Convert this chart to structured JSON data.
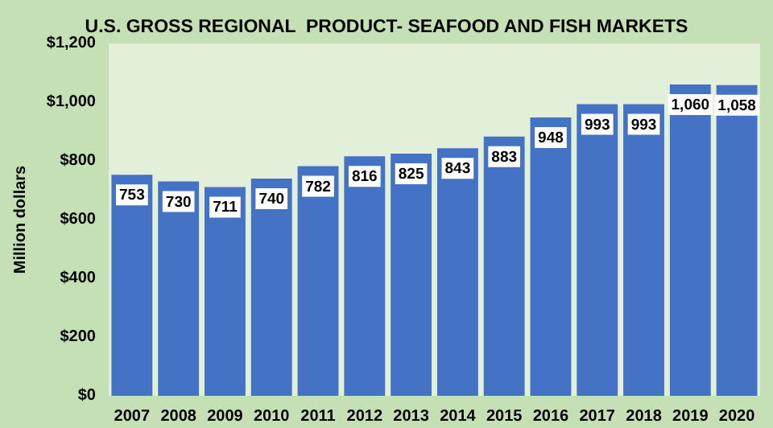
{
  "chart_data": {
    "type": "bar",
    "title": "U.S. GROSS REGIONAL  PRODUCT- SEAFOOD AND FISH MARKETS",
    "ylabel": "Million dollars",
    "categories": [
      "2007",
      "2008",
      "2009",
      "2010",
      "2011",
      "2012",
      "2013",
      "2014",
      "2015",
      "2016",
      "2017",
      "2018",
      "2019",
      "2020"
    ],
    "values": [
      753,
      730,
      711,
      740,
      782,
      816,
      825,
      843,
      883,
      948,
      993,
      993,
      1060,
      1058
    ],
    "value_labels": [
      "753",
      "730",
      "711",
      "740",
      "782",
      "816",
      "825",
      "843",
      "883",
      "948",
      "993",
      "993",
      "1,060",
      "1,058"
    ],
    "color": "#4472c4",
    "ylim": [
      0,
      1200
    ],
    "yticks": [
      {
        "value": 0,
        "label": "$0"
      },
      {
        "value": 200,
        "label": "$200"
      },
      {
        "value": 400,
        "label": "$400"
      },
      {
        "value": 600,
        "label": "$600"
      },
      {
        "value": 800,
        "label": "$800"
      },
      {
        "value": 1000,
        "label": "$1,000"
      },
      {
        "value": 1200,
        "label": "$1,200"
      }
    ],
    "grid": false
  }
}
